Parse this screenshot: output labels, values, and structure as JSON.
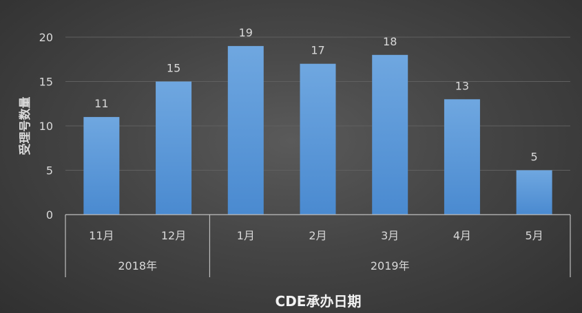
{
  "chart_data": {
    "type": "bar",
    "categories": [
      "11月",
      "12月",
      "1月",
      "2月",
      "3月",
      "4月",
      "5月"
    ],
    "groups": [
      {
        "label": "2018年",
        "categories": [
          "11月",
          "12月"
        ]
      },
      {
        "label": "2019年",
        "categories": [
          "1月",
          "2月",
          "3月",
          "4月",
          "5月"
        ]
      }
    ],
    "values": [
      11,
      15,
      19,
      17,
      18,
      13,
      5
    ],
    "yticks": [
      0,
      5,
      10,
      15,
      20
    ],
    "ylim": [
      0,
      20
    ],
    "xlabel": "CDE承办日期",
    "ylabel": "受理号数量",
    "grid": true,
    "data_labels": true,
    "colors": {
      "bar_top": "#6fa7e0",
      "bar_bottom": "#4a8ad0",
      "grid": "#606060",
      "axis": "#bfbfbf"
    }
  }
}
